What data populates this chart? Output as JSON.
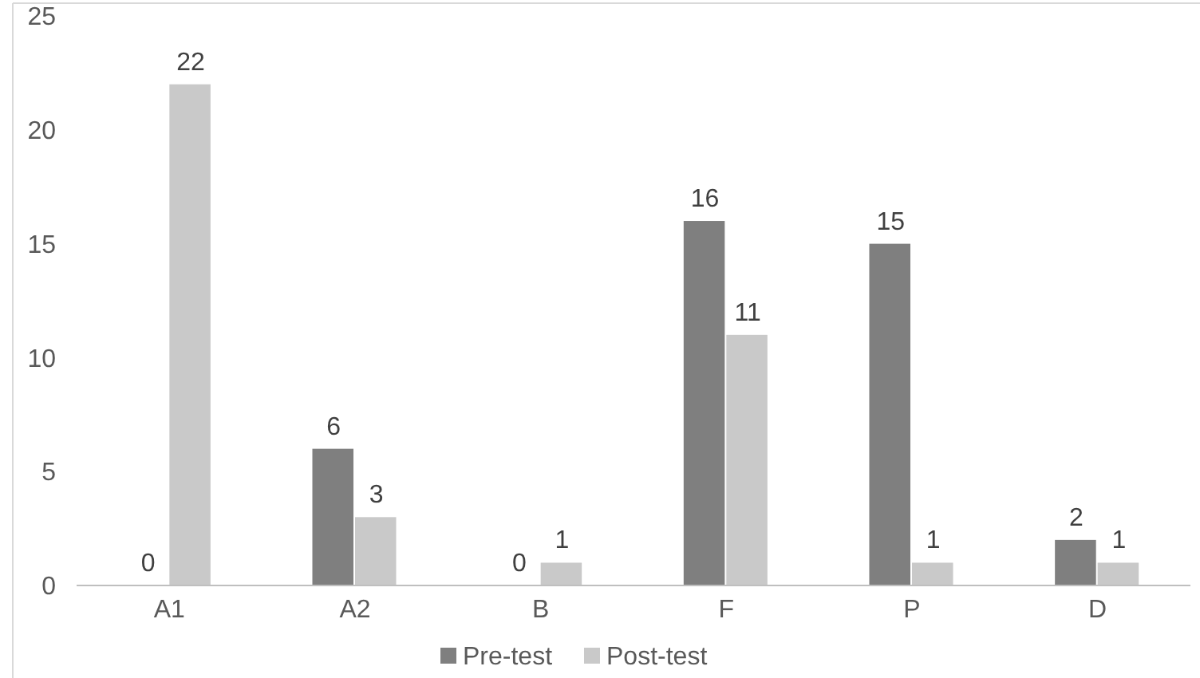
{
  "chart_data": {
    "type": "bar",
    "categories": [
      "A1",
      "A2",
      "B",
      "F",
      "P",
      "D"
    ],
    "series": [
      {
        "name": "Pre-test",
        "color": "#7f7f7f",
        "values": [
          0,
          6,
          0,
          16,
          15,
          2
        ]
      },
      {
        "name": "Post-test",
        "color": "#c9c9c9",
        "values": [
          22,
          3,
          1,
          11,
          1,
          1
        ]
      }
    ],
    "ylim": [
      0,
      25
    ],
    "yticks": [
      0,
      5,
      10,
      15,
      20,
      25
    ],
    "grid": false,
    "legend": "bottom",
    "data_labels": true
  }
}
